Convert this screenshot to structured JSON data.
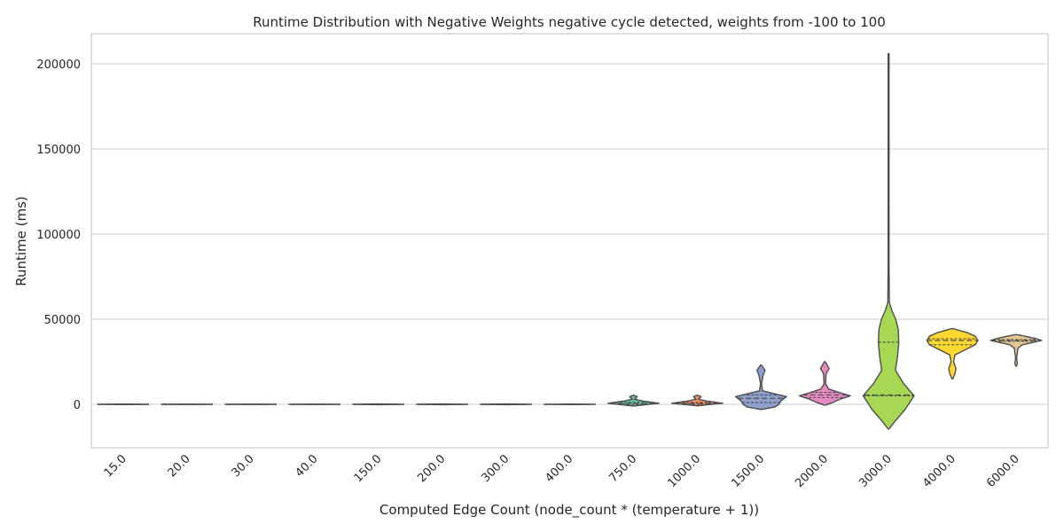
{
  "chart_data": {
    "type": "violin",
    "title": "Runtime Distribution with Negative Weights negative cycle detected, weights from -100 to 100",
    "xlabel": "Computed Edge Count (node_count * (temperature + 1))",
    "ylabel": "Runtime (ms)",
    "ylim": [
      -25000,
      218000
    ],
    "yticks": [
      0,
      50000,
      100000,
      150000,
      200000
    ],
    "ytick_labels": [
      "0",
      "50000",
      "100000",
      "150000",
      "200000"
    ],
    "grid": "horizontal",
    "categories": [
      "15.0",
      "20.0",
      "30.0",
      "40.0",
      "150.0",
      "200.0",
      "300.0",
      "400.0",
      "750.0",
      "1000.0",
      "1500.0",
      "2000.0",
      "3000.0",
      "4000.0",
      "6000.0"
    ],
    "colors": [
      "#66c2a5",
      "#fc8d62",
      "#8da0cb",
      "#e78ac3",
      "#a6d854",
      "#ffd92f",
      "#e5c494",
      "#b3b3b3",
      "#66c2a5",
      "#fc8d62",
      "#8da0cb",
      "#e78ac3",
      "#a6d854",
      "#ffd92f",
      "#e5c494"
    ],
    "violins": [
      {
        "category": "15.0",
        "profile": [
          [
            -150,
            0
          ],
          [
            0,
            1
          ],
          [
            150,
            0
          ]
        ],
        "q1": -20,
        "median": 0,
        "q3": 20
      },
      {
        "category": "20.0",
        "profile": [
          [
            -100,
            0
          ],
          [
            0,
            1
          ],
          [
            100,
            0
          ]
        ],
        "q1": -10,
        "median": 0,
        "q3": 10
      },
      {
        "category": "30.0",
        "profile": [
          [
            -100,
            0
          ],
          [
            0,
            1
          ],
          [
            100,
            0
          ]
        ],
        "q1": -10,
        "median": 0,
        "q3": 10
      },
      {
        "category": "40.0",
        "profile": [
          [
            -100,
            0
          ],
          [
            0,
            1
          ],
          [
            100,
            0
          ]
        ],
        "q1": -10,
        "median": 0,
        "q3": 10
      },
      {
        "category": "150.0",
        "profile": [
          [
            -200,
            0
          ],
          [
            0,
            1
          ],
          [
            200,
            0
          ]
        ],
        "q1": -30,
        "median": 0,
        "q3": 30
      },
      {
        "category": "200.0",
        "profile": [
          [
            -200,
            0
          ],
          [
            0,
            1
          ],
          [
            200,
            0
          ]
        ],
        "q1": -30,
        "median": 0,
        "q3": 30
      },
      {
        "category": "300.0",
        "profile": [
          [
            -200,
            0
          ],
          [
            0,
            1
          ],
          [
            200,
            0
          ]
        ],
        "q1": -30,
        "median": 0,
        "q3": 30
      },
      {
        "category": "400.0",
        "profile": [
          [
            -150,
            0
          ],
          [
            0,
            1
          ],
          [
            150,
            0
          ]
        ],
        "q1": -20,
        "median": 0,
        "q3": 20
      },
      {
        "category": "750.0",
        "profile": [
          [
            -1000,
            0
          ],
          [
            0,
            0.6
          ],
          [
            600,
            1
          ],
          [
            2000,
            0.35
          ],
          [
            3000,
            0.04
          ],
          [
            4000,
            0.12
          ],
          [
            4500,
            0.15
          ],
          [
            5300,
            0
          ]
        ],
        "q1": 0,
        "median": 500,
        "q3": 1200
      },
      {
        "category": "1000.0",
        "profile": [
          [
            -900,
            0
          ],
          [
            0,
            0.55
          ],
          [
            600,
            1
          ],
          [
            2000,
            0.35
          ],
          [
            3000,
            0.04
          ],
          [
            4000,
            0.12
          ],
          [
            4500,
            0.15
          ],
          [
            5300,
            0
          ]
        ],
        "q1": 0,
        "median": 500,
        "q3": 1100
      },
      {
        "category": "1500.0",
        "profile": [
          [
            -3000,
            0
          ],
          [
            -1500,
            0.55
          ],
          [
            0,
            0.7
          ],
          [
            2000,
            0.78
          ],
          [
            4500,
            1
          ],
          [
            6500,
            0.45
          ],
          [
            8000,
            0.06
          ],
          [
            12000,
            0.02
          ],
          [
            17000,
            0.08
          ],
          [
            20000,
            0.16
          ],
          [
            23000,
            0
          ]
        ],
        "q1": 1000,
        "median": 3500,
        "q3": 5500
      },
      {
        "category": "2000.0",
        "profile": [
          [
            -500,
            0
          ],
          [
            1000,
            0.3
          ],
          [
            3000,
            0.6
          ],
          [
            5000,
            1
          ],
          [
            7000,
            0.55
          ],
          [
            9000,
            0.15
          ],
          [
            12000,
            0.03
          ],
          [
            18000,
            0.05
          ],
          [
            21000,
            0.17
          ],
          [
            25000,
            0
          ]
        ],
        "q1": 4000,
        "median": 5500,
        "q3": 7000
      },
      {
        "category": "3000.0",
        "profile": [
          [
            -14500,
            0
          ],
          [
            -10000,
            0.25
          ],
          [
            -3000,
            0.65
          ],
          [
            5000,
            1
          ],
          [
            12000,
            0.6
          ],
          [
            20000,
            0.27
          ],
          [
            28000,
            0.35
          ],
          [
            36000,
            0.4
          ],
          [
            44000,
            0.38
          ],
          [
            50000,
            0.28
          ],
          [
            55000,
            0.13
          ],
          [
            60000,
            0.03
          ],
          [
            80000,
            0.018
          ],
          [
            120000,
            0.012
          ],
          [
            180000,
            0.012
          ],
          [
            206000,
            0
          ]
        ],
        "q1": 5000,
        "median": 5500,
        "q3": 36500
      },
      {
        "category": "4000.0",
        "profile": [
          [
            15000,
            0
          ],
          [
            18000,
            0.1
          ],
          [
            21000,
            0.14
          ],
          [
            25000,
            0.05
          ],
          [
            29000,
            0.1
          ],
          [
            32000,
            0.5
          ],
          [
            35000,
            0.9
          ],
          [
            37500,
            1
          ],
          [
            40000,
            0.9
          ],
          [
            42000,
            0.6
          ],
          [
            44500,
            0
          ]
        ],
        "q1": 35000,
        "median": 37500,
        "q3": 38500
      },
      {
        "category": "6000.0",
        "profile": [
          [
            22500,
            0
          ],
          [
            24000,
            0.05
          ],
          [
            27000,
            0.02
          ],
          [
            33000,
            0.07
          ],
          [
            35000,
            0.25
          ],
          [
            36500,
            0.7
          ],
          [
            37500,
            1
          ],
          [
            38500,
            0.8
          ],
          [
            40000,
            0.35
          ],
          [
            41000,
            0
          ]
        ],
        "q1": 37000,
        "median": 37500,
        "q3": 38000
      }
    ]
  }
}
